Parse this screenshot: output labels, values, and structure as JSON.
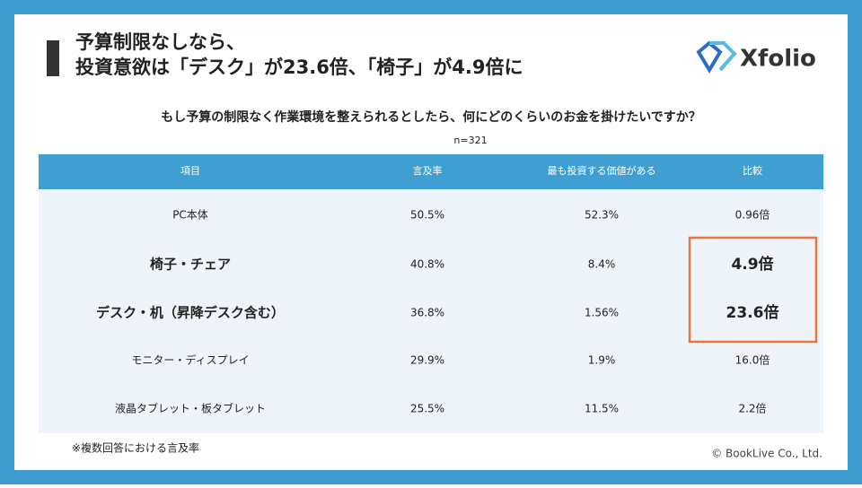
{
  "header": {
    "title_lines": [
      "予算制限なしなら、",
      "投資意欲は「デスク」が23.6倍、「椅子」が4.9倍に"
    ],
    "logo": "Xfolio"
  },
  "subtitle": "もし予算の制限なく作業環境を整えられるとしたら、何にどのくらいのお金を掛けたいですか？",
  "sample": "n=321",
  "table": {
    "headers": [
      "項目",
      "言及率",
      "最も投資する価値がある",
      "比較"
    ],
    "rows": [
      [
        "PC本体",
        "50.5%",
        "52.3%",
        "0.96倍"
      ],
      [
        "椅子・チェア",
        "40.8%",
        "8.4%",
        "4.9倍"
      ],
      [
        "デスク・机（昇降デスク含む）",
        "36.8%",
        "1.56%",
        "23.6倍"
      ],
      [
        "モニター・ディスプレイ",
        "29.9%",
        "1.9%",
        "16.0倍"
      ],
      [
        "液晶タブレット・板タブレット",
        "25.5%",
        "11.5%",
        "2.2倍"
      ]
    ]
  },
  "footnote": "※複数回答における言及率",
  "copyright": "© BookLive Co., Ltd."
}
